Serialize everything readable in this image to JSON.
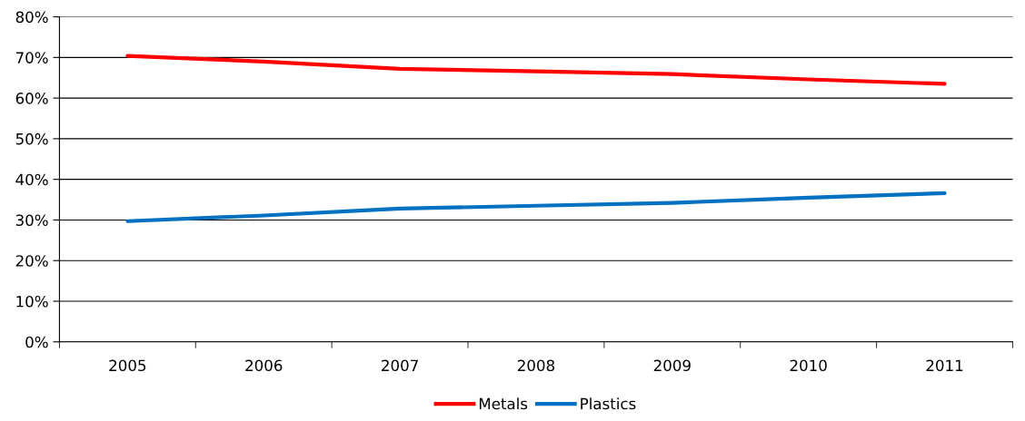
{
  "chart_data": {
    "type": "line",
    "categories": [
      "2005",
      "2006",
      "2007",
      "2008",
      "2009",
      "2010",
      "2011"
    ],
    "series": [
      {
        "name": "Metals",
        "color": "#ff0000",
        "values": [
          70.4,
          69.0,
          67.2,
          66.6,
          65.9,
          64.6,
          63.5
        ]
      },
      {
        "name": "Plastics",
        "color": "#0070c0",
        "values": [
          29.7,
          31.1,
          32.8,
          33.5,
          34.2,
          35.5,
          36.6
        ]
      }
    ],
    "ylim": [
      0,
      80
    ],
    "yticks": [
      {
        "value": 0,
        "label": "0%"
      },
      {
        "value": 10,
        "label": "10%"
      },
      {
        "value": 20,
        "label": "20%"
      },
      {
        "value": 30,
        "label": "30%"
      },
      {
        "value": 40,
        "label": "40%"
      },
      {
        "value": 50,
        "label": "50%"
      },
      {
        "value": 60,
        "label": "60%"
      },
      {
        "value": 70,
        "label": "70%"
      },
      {
        "value": 80,
        "label": "80%"
      }
    ],
    "grid": "y",
    "legend": "bottom",
    "marker": "none",
    "line_style": "solid"
  }
}
